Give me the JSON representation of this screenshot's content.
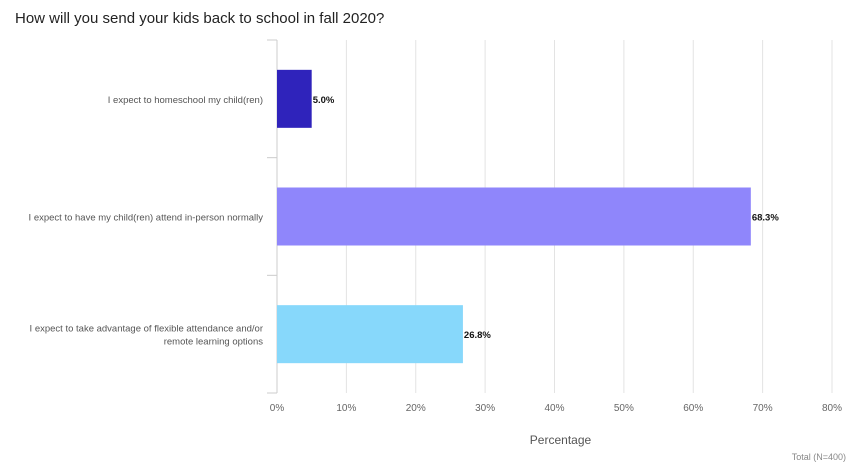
{
  "chart_data": {
    "type": "bar",
    "orientation": "horizontal",
    "title": "How will you send your kids back to school in fall 2020?",
    "xlabel": "Percentage",
    "ylabel": "",
    "xlim": [
      0,
      80
    ],
    "ticks": [
      "0%",
      "10%",
      "20%",
      "30%",
      "40%",
      "50%",
      "60%",
      "70%",
      "80%"
    ],
    "grid": true,
    "categories": [
      [
        "I expect to homeschool my child(ren)"
      ],
      [
        "I expect to have my child(ren) attend in-person normally"
      ],
      [
        "I expect to take advantage of flexible attendance and/or",
        "remote learning options"
      ]
    ],
    "values": [
      5.0,
      68.3,
      26.8
    ],
    "value_labels": [
      "5.0%",
      "68.3%",
      "26.8%"
    ],
    "colors": [
      "#2f23bb",
      "#8f86fb",
      "#87d8fb"
    ],
    "footnote": "Total (N=400)"
  }
}
